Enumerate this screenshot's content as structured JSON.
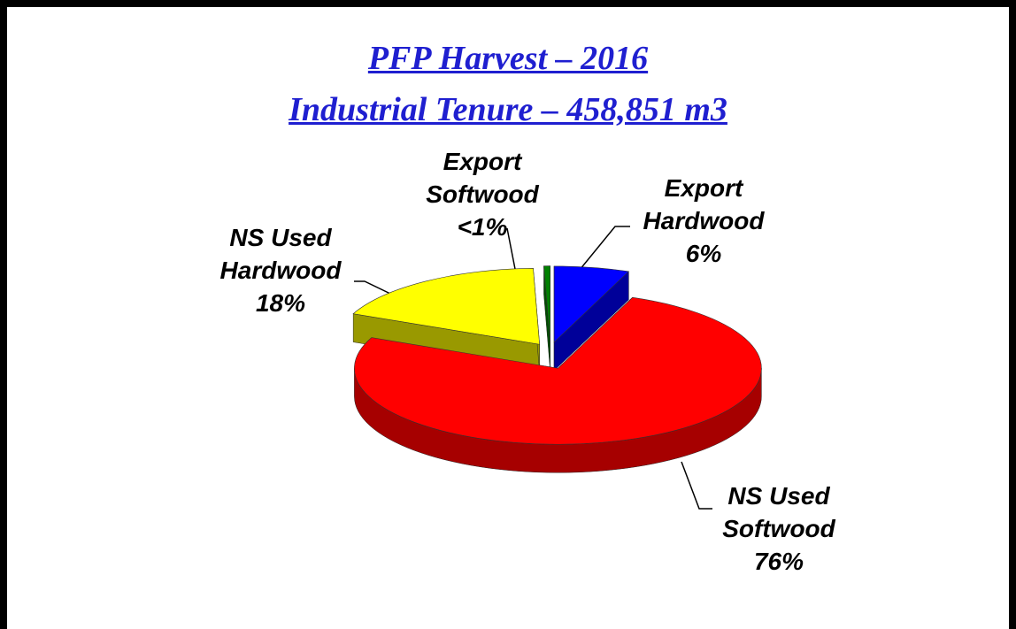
{
  "chart_data": {
    "type": "pie",
    "title": "PFP Harvest – 2016",
    "subtitle": "Industrial Tenure – 458,851 m3",
    "categories": [
      "Export Hardwood",
      "NS Used Softwood",
      "NS Used Hardwood",
      "Export Softwood"
    ],
    "values": [
      6,
      76,
      18,
      0.5
    ],
    "value_labels": [
      "6%",
      "76%",
      "18%",
      "<1%"
    ],
    "colors": [
      "#0000ff",
      "#ff0000",
      "#ffff00",
      "#008000"
    ]
  }
}
